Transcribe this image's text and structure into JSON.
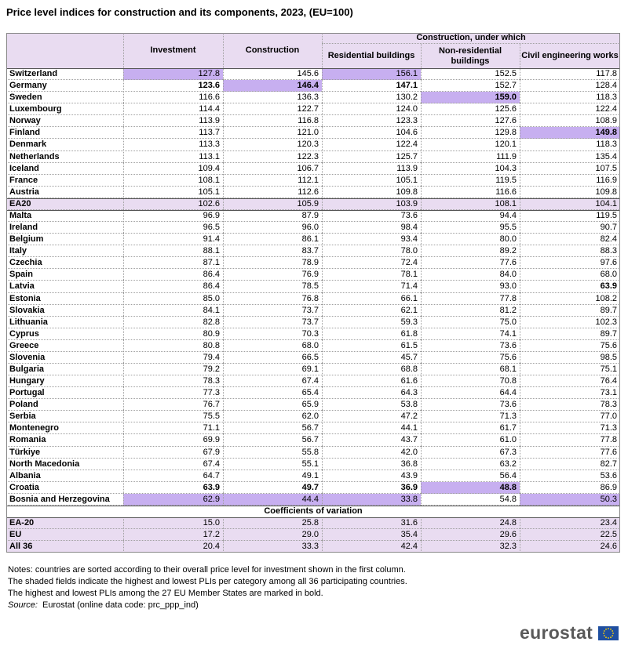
{
  "title": "Price level indices for construction and its components, 2023, (EU=100)",
  "table": {
    "group_header": "Construction, under which",
    "columns": [
      "Investment",
      "Construction",
      "Residential buildings",
      "Non-residential buildings",
      "Civil engineering works"
    ],
    "rows": [
      [
        "Switzerland",
        "127.8",
        "145.6",
        "156.1",
        "152.5",
        "117.8"
      ],
      [
        "Germany",
        "123.6",
        "146.4",
        "147.1",
        "152.7",
        "128.4"
      ],
      [
        "Sweden",
        "116.6",
        "136.3",
        "130.2",
        "159.0",
        "118.3"
      ],
      [
        "Luxembourg",
        "114.4",
        "122.7",
        "124.0",
        "125.6",
        "122.4"
      ],
      [
        "Norway",
        "113.9",
        "116.8",
        "123.3",
        "127.6",
        "108.9"
      ],
      [
        "Finland",
        "113.7",
        "121.0",
        "104.6",
        "129.8",
        "149.8"
      ],
      [
        "Denmark",
        "113.3",
        "120.3",
        "122.4",
        "120.1",
        "118.3"
      ],
      [
        "Netherlands",
        "113.1",
        "122.3",
        "125.7",
        "111.9",
        "135.4"
      ],
      [
        "Iceland",
        "109.4",
        "106.7",
        "113.9",
        "104.3",
        "107.5"
      ],
      [
        "France",
        "108.1",
        "112.1",
        "105.1",
        "119.5",
        "116.9"
      ],
      [
        "Austria",
        "105.1",
        "112.6",
        "109.8",
        "116.6",
        "109.8"
      ],
      [
        "EA20",
        "102.6",
        "105.9",
        "103.9",
        "108.1",
        "104.1"
      ],
      [
        "Malta",
        "96.9",
        "87.9",
        "73.6",
        "94.4",
        "119.5"
      ],
      [
        "Ireland",
        "96.5",
        "96.0",
        "98.4",
        "95.5",
        "90.7"
      ],
      [
        "Belgium",
        "91.4",
        "86.1",
        "93.4",
        "80.0",
        "82.4"
      ],
      [
        "Italy",
        "88.1",
        "83.7",
        "78.0",
        "89.2",
        "88.3"
      ],
      [
        "Czechia",
        "87.1",
        "78.9",
        "72.4",
        "77.6",
        "97.6"
      ],
      [
        "Spain",
        "86.4",
        "76.9",
        "78.1",
        "84.0",
        "68.0"
      ],
      [
        "Latvia",
        "86.4",
        "78.5",
        "71.4",
        "93.0",
        "63.9"
      ],
      [
        "Estonia",
        "85.0",
        "76.8",
        "66.1",
        "77.8",
        "108.2"
      ],
      [
        "Slovakia",
        "84.1",
        "73.7",
        "62.1",
        "81.2",
        "89.7"
      ],
      [
        "Lithuania",
        "82.8",
        "73.7",
        "59.3",
        "75.0",
        "102.3"
      ],
      [
        "Cyprus",
        "80.9",
        "70.3",
        "61.8",
        "74.1",
        "89.7"
      ],
      [
        "Greece",
        "80.8",
        "68.0",
        "61.5",
        "73.6",
        "75.6"
      ],
      [
        "Slovenia",
        "79.4",
        "66.5",
        "45.7",
        "75.6",
        "98.5"
      ],
      [
        "Bulgaria",
        "79.2",
        "69.1",
        "68.8",
        "68.1",
        "75.1"
      ],
      [
        "Hungary",
        "78.3",
        "67.4",
        "61.6",
        "70.8",
        "76.4"
      ],
      [
        "Portugal",
        "77.3",
        "65.4",
        "64.3",
        "64.4",
        "73.1"
      ],
      [
        "Poland",
        "76.7",
        "65.9",
        "53.8",
        "73.6",
        "78.3"
      ],
      [
        "Serbia",
        "75.5",
        "62.0",
        "47.2",
        "71.3",
        "77.0"
      ],
      [
        "Montenegro",
        "71.1",
        "56.7",
        "44.1",
        "61.7",
        "71.3"
      ],
      [
        "Romania",
        "69.9",
        "56.7",
        "43.7",
        "61.0",
        "77.8"
      ],
      [
        "Türkiye",
        "67.9",
        "55.8",
        "42.0",
        "67.3",
        "77.6"
      ],
      [
        "North Macedonia",
        "67.4",
        "55.1",
        "36.8",
        "63.2",
        "82.7"
      ],
      [
        "Albania",
        "64.7",
        "49.1",
        "43.9",
        "56.4",
        "53.6"
      ],
      [
        "Croatia",
        "63.9",
        "49.7",
        "36.9",
        "48.8",
        "86.9"
      ],
      [
        "Bosnia and Herzegovina",
        "62.9",
        "44.4",
        "33.8",
        "54.8",
        "50.3"
      ]
    ],
    "cv_header": "Coefficients of variation",
    "cv_rows": [
      [
        "EA-20",
        "15.0",
        "25.8",
        "31.6",
        "24.8",
        "23.4"
      ],
      [
        "EU",
        "17.2",
        "29.0",
        "35.4",
        "29.6",
        "22.5"
      ],
      [
        "All 36",
        "20.4",
        "33.3",
        "42.4",
        "32.3",
        "24.6"
      ]
    ]
  },
  "notes": [
    "Notes: countries are sorted according to their overall price level for investment shown in the first column.",
    "The shaded fields indicate the highest and lowest PLIs per category among all 36 participating countries.",
    "The highest and lowest PLIs among the 27 EU Member States are marked in bold."
  ],
  "source_label": "Source:",
  "source": "Eurostat (online data code: prc_ppp_ind)",
  "logo": "eurostat"
}
